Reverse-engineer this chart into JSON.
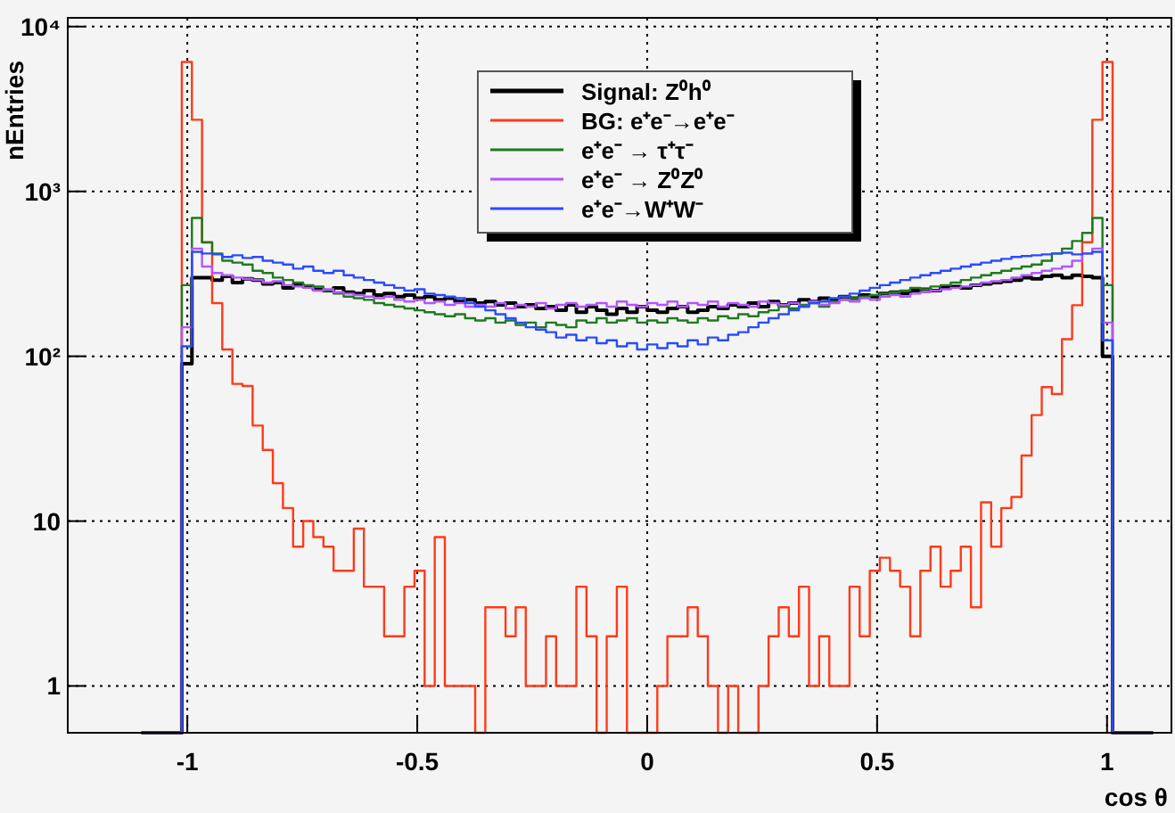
{
  "chart_data": {
    "type": "histogram",
    "xlabel": "cos θ",
    "ylabel": "nEntries",
    "log": "y",
    "grid": true,
    "legend": "top",
    "line_style": "solid",
    "xlim": [
      -1.26,
      1.14
    ],
    "xticks": [
      -1,
      -0.5,
      0,
      0.5,
      1
    ],
    "ylim": [
      0.52,
      11300
    ],
    "yticks": [
      1,
      10,
      {
        "value": 100,
        "label": "10²"
      },
      {
        "value": 1000,
        "label": "10³"
      },
      {
        "value": 10000,
        "label": "10⁴"
      }
    ],
    "bins": [
      -1.1,
      -1.078,
      -1.056,
      -1.034,
      -1.012,
      -0.99,
      -0.968,
      -0.946,
      -0.924,
      -0.902,
      -0.88,
      -0.858,
      -0.836,
      -0.814,
      -0.792,
      -0.77,
      -0.748,
      -0.726,
      -0.704,
      -0.682,
      -0.66,
      -0.638,
      -0.616,
      -0.594,
      -0.572,
      -0.55,
      -0.528,
      -0.506,
      -0.484,
      -0.462,
      -0.44,
      -0.418,
      -0.396,
      -0.374,
      -0.352,
      -0.33,
      -0.308,
      -0.286,
      -0.264,
      -0.242,
      -0.22,
      -0.198,
      -0.176,
      -0.154,
      -0.132,
      -0.11,
      -0.088,
      -0.066,
      -0.044,
      -0.022,
      0,
      0.022,
      0.044,
      0.066,
      0.088,
      0.11,
      0.132,
      0.154,
      0.176,
      0.198,
      0.22,
      0.242,
      0.264,
      0.286,
      0.308,
      0.33,
      0.352,
      0.374,
      0.396,
      0.418,
      0.44,
      0.462,
      0.484,
      0.506,
      0.528,
      0.55,
      0.572,
      0.594,
      0.616,
      0.638,
      0.66,
      0.682,
      0.704,
      0.726,
      0.748,
      0.77,
      0.792,
      0.814,
      0.836,
      0.858,
      0.88,
      0.902,
      0.924,
      0.946,
      0.968,
      0.99,
      1.012,
      1.034,
      1.056,
      1.078,
      1.1
    ],
    "series": [
      {
        "name": "Signal: Z⁰h⁰",
        "color": "#000000",
        "values": [
          null,
          null,
          null,
          null,
          90,
          300,
          300,
          290,
          305,
          280,
          295,
          290,
          275,
          280,
          260,
          270,
          265,
          255,
          250,
          260,
          245,
          240,
          250,
          235,
          240,
          230,
          235,
          225,
          230,
          220,
          225,
          215,
          220,
          210,
          215,
          205,
          210,
          200,
          205,
          195,
          200,
          190,
          205,
          185,
          200,
          190,
          180,
          195,
          185,
          200,
          190,
          185,
          195,
          200,
          185,
          190,
          200,
          195,
          205,
          200,
          210,
          200,
          215,
          205,
          210,
          220,
          215,
          225,
          220,
          230,
          225,
          235,
          230,
          240,
          245,
          240,
          250,
          255,
          250,
          260,
          265,
          260,
          270,
          275,
          280,
          285,
          290,
          300,
          295,
          305,
          310,
          300,
          310,
          305,
          300,
          100,
          null,
          null,
          null,
          null
        ]
      },
      {
        "name": "BG: e⁺e⁻→e⁺e⁻",
        "color": "#ff3a1a",
        "values": [
          null,
          null,
          null,
          null,
          6100,
          2720,
          492,
          210,
          110,
          68,
          66,
          38,
          27,
          17,
          12,
          7,
          10,
          8,
          7,
          5,
          5,
          9,
          4,
          4,
          2,
          2,
          4,
          5,
          1,
          8,
          1,
          1,
          1,
          null,
          3,
          3,
          2,
          3,
          1,
          1,
          2,
          1,
          1,
          4,
          2,
          null,
          2,
          4,
          null,
          null,
          null,
          1,
          2,
          2,
          3,
          2,
          1,
          null,
          1,
          null,
          null,
          1,
          2,
          3,
          2,
          4,
          1,
          2,
          1,
          1,
          4,
          2,
          5,
          6,
          5,
          4,
          2,
          5,
          7,
          4,
          5,
          7,
          3,
          13,
          7,
          12,
          14,
          25,
          44,
          65,
          59,
          127,
          204,
          492,
          2720,
          6100,
          null,
          null,
          null,
          null
        ]
      },
      {
        "name": "e⁺e⁻ → τ⁺τ⁻",
        "color": "#1f7a1f",
        "values": [
          null,
          null,
          null,
          null,
          270,
          690,
          490,
          420,
          380,
          370,
          360,
          330,
          320,
          300,
          290,
          280,
          270,
          265,
          250,
          240,
          230,
          225,
          220,
          210,
          205,
          200,
          195,
          190,
          185,
          180,
          175,
          180,
          170,
          165,
          170,
          160,
          165,
          155,
          160,
          150,
          160,
          155,
          150,
          165,
          160,
          170,
          160,
          165,
          170,
          160,
          165,
          160,
          170,
          165,
          160,
          170,
          165,
          175,
          170,
          180,
          175,
          185,
          190,
          200,
          195,
          205,
          210,
          200,
          215,
          220,
          225,
          230,
          235,
          240,
          245,
          250,
          260,
          255,
          265,
          270,
          280,
          290,
          300,
          310,
          320,
          330,
          340,
          350,
          360,
          380,
          420,
          450,
          500,
          560,
          690,
          270,
          null,
          null,
          null,
          null
        ]
      },
      {
        "name": "e⁺e⁻ → Z⁰Z⁰",
        "color": "#b455ff",
        "values": [
          null,
          null,
          null,
          null,
          150,
          450,
          350,
          320,
          310,
          300,
          295,
          290,
          280,
          285,
          270,
          265,
          260,
          250,
          255,
          245,
          240,
          235,
          230,
          225,
          230,
          220,
          215,
          220,
          210,
          215,
          205,
          210,
          200,
          205,
          200,
          210,
          195,
          205,
          200,
          210,
          195,
          205,
          210,
          200,
          205,
          210,
          200,
          215,
          205,
          200,
          210,
          205,
          215,
          200,
          210,
          205,
          215,
          200,
          210,
          205,
          200,
          215,
          210,
          205,
          210,
          200,
          215,
          205,
          210,
          220,
          215,
          225,
          220,
          230,
          235,
          230,
          240,
          245,
          250,
          255,
          260,
          265,
          270,
          280,
          285,
          290,
          300,
          310,
          320,
          330,
          340,
          350,
          380,
          420,
          450,
          160,
          null,
          null,
          null,
          null
        ]
      },
      {
        "name": "e⁺e⁻→W⁺W⁻",
        "color": "#2a4bff",
        "values": [
          null,
          null,
          null,
          null,
          115,
          430,
          420,
          415,
          400,
          410,
          395,
          400,
          380,
          370,
          360,
          340,
          350,
          330,
          320,
          330,
          310,
          300,
          290,
          280,
          270,
          260,
          250,
          255,
          240,
          235,
          230,
          225,
          210,
          200,
          190,
          180,
          170,
          160,
          150,
          145,
          140,
          130,
          135,
          125,
          130,
          120,
          125,
          115,
          120,
          110,
          118,
          112,
          120,
          115,
          125,
          118,
          130,
          125,
          135,
          140,
          150,
          160,
          170,
          180,
          190,
          200,
          210,
          215,
          225,
          230,
          240,
          250,
          260,
          270,
          280,
          290,
          300,
          310,
          320,
          330,
          340,
          350,
          360,
          370,
          380,
          390,
          400,
          405,
          410,
          415,
          420,
          425,
          415,
          420,
          430,
          125,
          null,
          null,
          null,
          null
        ]
      }
    ]
  }
}
